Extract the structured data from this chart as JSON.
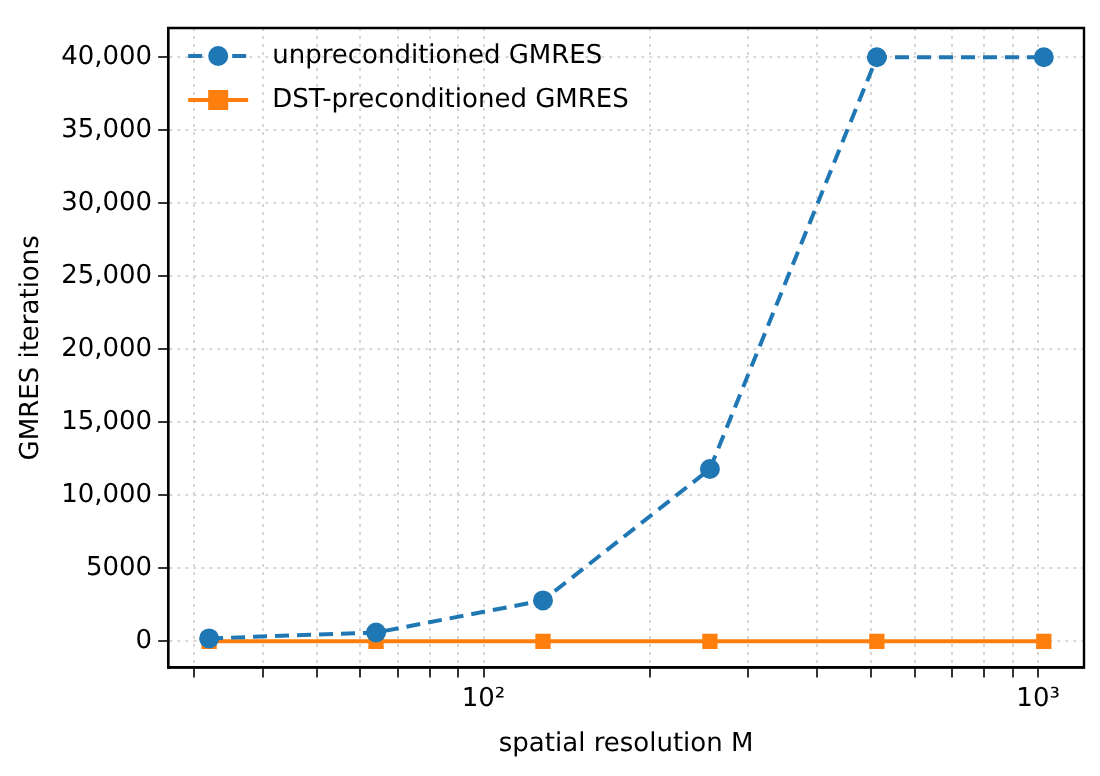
{
  "chart_data": {
    "type": "line",
    "xlabel": "spatial resolution M",
    "ylabel": "GMRES iterations",
    "x": [
      32,
      64,
      128,
      256,
      512,
      1024
    ],
    "series": [
      {
        "name": "unpreconditioned GMRES",
        "color": "#1f77b4",
        "values": [
          200,
          600,
          2800,
          11800,
          40000,
          40000
        ],
        "marker": "circle",
        "line_style": "dashed"
      },
      {
        "name": "DST-preconditioned GMRES",
        "color": "#ff7f0e",
        "values": [
          0,
          0,
          0,
          0,
          0,
          0
        ],
        "marker": "square",
        "line_style": "solid"
      }
    ],
    "log": "x",
    "xlim": [
      27,
      1210
    ],
    "ylim": [
      -1800,
      42000
    ],
    "xticks": [
      {
        "value": 30,
        "label": null
      },
      {
        "value": 40,
        "label": null
      },
      {
        "value": 50,
        "label": null
      },
      {
        "value": 60,
        "label": null
      },
      {
        "value": 70,
        "label": null
      },
      {
        "value": 80,
        "label": null
      },
      {
        "value": 90,
        "label": null
      },
      {
        "value": 100,
        "label": "10²"
      },
      {
        "value": 200,
        "label": null
      },
      {
        "value": 300,
        "label": null
      },
      {
        "value": 400,
        "label": null
      },
      {
        "value": 500,
        "label": null
      },
      {
        "value": 600,
        "label": null
      },
      {
        "value": 700,
        "label": null
      },
      {
        "value": 800,
        "label": null
      },
      {
        "value": 900,
        "label": null
      },
      {
        "value": 1000,
        "label": "10³"
      }
    ],
    "yticks": [
      0,
      5000,
      {
        "value": 10000,
        "label": "10,000"
      },
      {
        "value": 15000,
        "label": "15,000"
      },
      {
        "value": 20000,
        "label": "20,000"
      },
      {
        "value": 25000,
        "label": "25,000"
      },
      {
        "value": 30000,
        "label": "30,000"
      },
      {
        "value": 35000,
        "label": "35,000"
      },
      {
        "value": 40000,
        "label": "40,000"
      }
    ],
    "grid": true,
    "legend": "top left"
  }
}
